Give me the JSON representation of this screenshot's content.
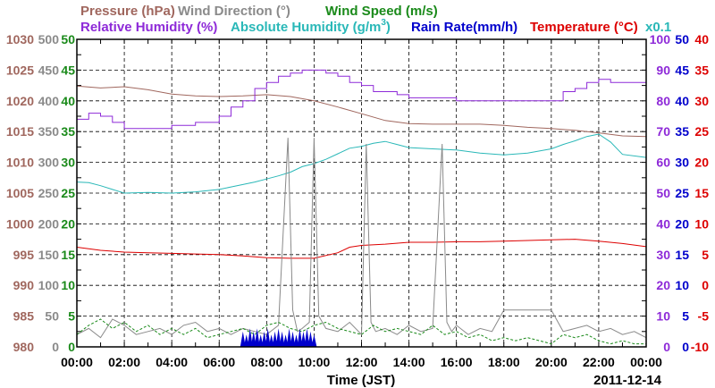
{
  "colors": {
    "pressure": "#a0675e",
    "wind_direction": "#8a8a8a",
    "wind_speed": "#1a8a1a",
    "relative_humidity": "#8e2ad8",
    "absolute_humidity": "#2ab8b8",
    "rain_rate": "#0000cc",
    "temperature": "#dd0000",
    "grid": "#000000",
    "frame": "#000000"
  },
  "chart_data": {
    "type": "line",
    "grid": true,
    "date_label": "2011-12-14",
    "xlabel": "Time (JST)",
    "x_ticks": [
      "00:00",
      "02:00",
      "04:00",
      "06:00",
      "08:00",
      "10:00",
      "12:00",
      "14:00",
      "16:00",
      "18:00",
      "20:00",
      "22:00",
      "00:00"
    ],
    "x_range_hours": [
      0,
      24
    ],
    "axes": {
      "pressure": {
        "title": "Pressure (hPa)",
        "ticks": [
          "1030",
          "1025",
          "1020",
          "1015",
          "1010",
          "1005",
          "1000",
          "995",
          "990",
          "985",
          "980"
        ],
        "range": [
          980,
          1030
        ]
      },
      "wind_direction": {
        "title": "Wind Direction (°)",
        "ticks": [
          "500",
          "450",
          "400",
          "350",
          "300",
          "250",
          "200",
          "150",
          "100",
          "50",
          "0"
        ],
        "range": [
          0,
          500
        ]
      },
      "wind_speed": {
        "title": "Wind Speed (m/s)",
        "ticks": [
          "50",
          "45",
          "40",
          "35",
          "30",
          "25",
          "20",
          "15",
          "10",
          "5",
          "0"
        ],
        "range": [
          0,
          50
        ]
      },
      "relative_humidity": {
        "title": "Relative Humidity (%)",
        "ticks": [
          "100",
          "90",
          "80",
          "70",
          "60",
          "50",
          "40",
          "30",
          "20",
          "10",
          "0"
        ],
        "range": [
          0,
          100
        ]
      },
      "absolute_humidity": {
        "title": "Absolute Humidity (g/m",
        "title_sup": "3",
        "title_end": ")",
        "scale_note": "x0.1",
        "range": [
          0,
          50
        ]
      },
      "rain_rate": {
        "title": "Rain Rate(mm/h)",
        "ticks": [
          "50",
          "45",
          "40",
          "35",
          "30",
          "25",
          "20",
          "15",
          "10",
          "5",
          "0"
        ],
        "range": [
          0,
          50
        ]
      },
      "temperature": {
        "title": "Temperature (°C)",
        "ticks": [
          "40",
          "35",
          "30",
          "25",
          "20",
          "15",
          "10",
          "5",
          "0",
          "-5",
          "-10"
        ],
        "range": [
          -10,
          40
        ]
      }
    },
    "series": [
      {
        "name": "Pressure (hPa)",
        "axis": "pressure",
        "x": [
          0,
          1,
          2,
          3,
          4,
          5,
          6,
          7,
          8,
          9,
          10,
          11,
          12,
          13,
          14,
          15,
          16,
          17,
          18,
          19,
          20,
          21,
          22,
          23,
          24
        ],
        "y": [
          1022.4,
          1022.1,
          1022.3,
          1021.8,
          1021.1,
          1020.8,
          1020.7,
          1020.8,
          1021.0,
          1020.7,
          1020.0,
          1019.0,
          1017.9,
          1016.8,
          1016.3,
          1016.2,
          1016.2,
          1016.2,
          1016.0,
          1015.7,
          1015.5,
          1015.2,
          1014.8,
          1014.3,
          1014.2
        ]
      },
      {
        "name": "Relative Humidity (%)",
        "axis": "relative_humidity",
        "x": [
          0,
          0.5,
          1,
          1.5,
          2,
          3,
          4,
          5,
          6,
          6.5,
          7,
          7.5,
          8,
          8.5,
          9,
          9.5,
          10,
          10.5,
          11,
          11.5,
          12,
          12.5,
          13,
          13.5,
          14,
          15,
          16,
          17,
          18,
          19,
          20,
          20.5,
          21,
          21.5,
          22,
          22.5,
          23,
          24
        ],
        "y": [
          74,
          76,
          75,
          73,
          71,
          71,
          72,
          73,
          75,
          78,
          80,
          84,
          86,
          88,
          89,
          90,
          90,
          89,
          88,
          86,
          85,
          83,
          83,
          82,
          81,
          81,
          80,
          80,
          80,
          80,
          80,
          83,
          84,
          86,
          87,
          86,
          86,
          86
        ]
      },
      {
        "name": "Absolute Humidity (g/m3) x0.1",
        "axis": "absolute_humidity",
        "x": [
          0,
          0.5,
          1,
          1.5,
          2,
          3,
          4,
          5,
          6,
          6.5,
          7,
          7.5,
          8,
          8.5,
          9,
          9.5,
          10,
          10.5,
          11,
          11.5,
          12,
          12.5,
          13,
          13.5,
          14,
          15,
          16,
          17,
          18,
          19,
          20,
          20.5,
          21,
          21.5,
          22,
          22.5,
          23,
          24
        ],
        "y": [
          26.8,
          26.7,
          26.2,
          25.6,
          25.0,
          25.1,
          25.0,
          25.2,
          25.6,
          26.0,
          26.4,
          26.8,
          27.3,
          27.8,
          28.4,
          29.3,
          29.8,
          30.5,
          31.4,
          32.3,
          32.6,
          33.1,
          33.4,
          32.9,
          32.4,
          32.2,
          32.0,
          31.5,
          31.2,
          31.5,
          32.2,
          32.9,
          33.5,
          34.2,
          34.6,
          33.3,
          31.3,
          30.8
        ]
      },
      {
        "name": "Temperature (°C)",
        "axis": "temperature",
        "x": [
          0,
          1,
          2,
          3,
          4,
          5,
          6,
          7,
          8,
          9,
          10,
          11,
          11.5,
          12,
          13,
          14,
          15,
          16,
          17,
          18,
          19,
          20,
          21,
          22,
          23,
          24
        ],
        "y": [
          6.2,
          5.7,
          5.4,
          5.3,
          5.2,
          5.1,
          5.0,
          4.8,
          4.5,
          4.4,
          4.4,
          5.3,
          6.2,
          6.5,
          6.7,
          7.0,
          7.0,
          7.1,
          7.1,
          7.2,
          7.3,
          7.4,
          7.5,
          7.2,
          6.8,
          6.3
        ]
      },
      {
        "name": "Wind Direction (°)",
        "axis": "wind_direction",
        "x": [
          0,
          0.5,
          1,
          1.5,
          2,
          2.5,
          3,
          3.5,
          4,
          4.5,
          5,
          5.5,
          6,
          6.5,
          7,
          7.5,
          8,
          8.5,
          8.9,
          9.1,
          9.3,
          9.5,
          9.8,
          10.0,
          10.2,
          10.5,
          11,
          11.5,
          12,
          12.2,
          12.4,
          12.6,
          13,
          13.5,
          14,
          14.5,
          15,
          15.4,
          15.6,
          15.8,
          16,
          16.5,
          17,
          17.5,
          18,
          18.5,
          19,
          19.5,
          20,
          20.5,
          21,
          21.5,
          22,
          22.5,
          23,
          23.5,
          24
        ],
        "y": [
          20,
          30,
          15,
          45,
          35,
          20,
          25,
          30,
          20,
          35,
          40,
          25,
          30,
          20,
          30,
          25,
          20,
          35,
          340,
          60,
          25,
          30,
          40,
          340,
          50,
          30,
          25,
          40,
          20,
          330,
          40,
          25,
          30,
          20,
          35,
          25,
          30,
          330,
          40,
          25,
          35,
          20,
          30,
          25,
          60,
          60,
          60,
          60,
          60,
          25,
          30,
          35,
          25,
          30,
          20,
          25,
          15
        ]
      },
      {
        "name": "Wind Speed (m/s)",
        "axis": "wind_speed",
        "x": [
          0,
          0.5,
          1,
          1.5,
          2,
          2.5,
          3,
          3.5,
          4,
          4.5,
          5,
          5.5,
          6,
          6.5,
          7,
          7.5,
          8,
          8.5,
          9,
          9.5,
          10,
          10.5,
          11,
          11.5,
          12,
          12.5,
          13,
          13.5,
          14,
          14.5,
          15,
          15.5,
          16,
          16.5,
          17,
          17.5,
          18,
          18.5,
          19,
          19.5,
          20,
          20.5,
          21,
          21.5,
          22,
          22.5,
          23,
          23.5,
          24
        ],
        "y": [
          2,
          3.5,
          4.5,
          3,
          4,
          2.5,
          3.5,
          2,
          3,
          2,
          3,
          1.5,
          2,
          2.5,
          3,
          2,
          3.5,
          4,
          3,
          2.5,
          3.5,
          4,
          3,
          2.5,
          2,
          3.5,
          2.5,
          3,
          2.5,
          2,
          3.5,
          2,
          2.5,
          1.5,
          2,
          1,
          1.5,
          1,
          1.5,
          1,
          0.5,
          2,
          1.5,
          2,
          1,
          0.5,
          1,
          0.5,
          0.5
        ]
      },
      {
        "name": "Rain Rate(mm/h)",
        "axis": "rain_rate",
        "x": [
          7.0,
          7.15,
          7.3,
          7.45,
          7.6,
          7.75,
          7.9,
          8.05,
          8.2,
          8.35,
          8.5,
          8.65,
          8.8,
          8.95,
          9.1,
          9.25,
          9.4,
          9.55,
          9.7,
          9.85,
          10.0
        ],
        "y": [
          2.5,
          2,
          3,
          2.5,
          3,
          2,
          2.5,
          3,
          2,
          2.5,
          3,
          2.5,
          2,
          3,
          2.5,
          2,
          3,
          2.5,
          3,
          2.5,
          2
        ]
      }
    ]
  }
}
